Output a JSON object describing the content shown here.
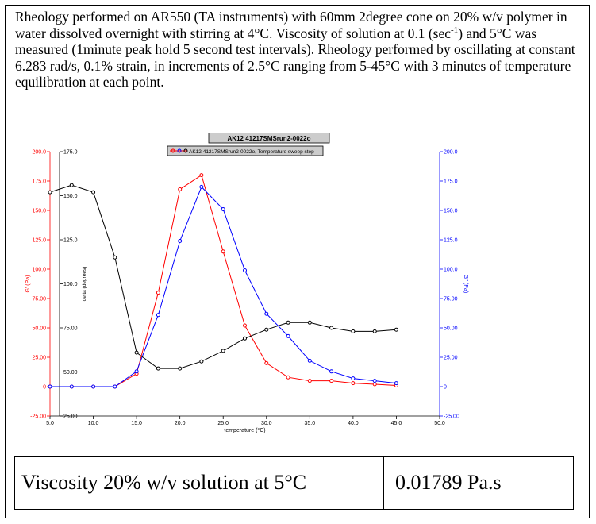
{
  "description": {
    "before_sup": "Rheology performed on AR550 (TA instruments) with 60mm 2degree cone on 20% w/v polymer in water dissolved overnight with stirring at 4°C. Viscosity of solution at 0.1 (sec",
    "sup": "-1",
    "after_sup": ") and 5°C was measured (1minute peak hold 5 second test intervals). Rheology performed by oscillating at constant 6.283 rad/s, 0.1% strain, in increments of 2.5°C ranging from 5-45°C with 3 minutes of temperature equilibration at each point."
  },
  "table": {
    "label": "Viscosity 20% w/v solution at 5°C",
    "value": "0.01789  Pa.s"
  },
  "chart_data": {
    "type": "line",
    "title": "AK12 41217SMSrun2-0022o",
    "legend": {
      "text": "AK12 41217SMSrun2-0022o, Temperature sweep step",
      "position": "top-center"
    },
    "xlabel": "temperature (°C)",
    "xlim": [
      5.0,
      50.0
    ],
    "x_ticks": [
      "5.0",
      "10.0",
      "15.0",
      "20.0",
      "25.0",
      "30.0",
      "35.0",
      "40.0",
      "45.0",
      "50.0"
    ],
    "left_axis": {
      "label": "G' (Pa)",
      "color": "#ff0000",
      "lim": [
        -25.0,
        200.0
      ],
      "ticks": [
        "-25.00",
        "0",
        "25.00",
        "50.00",
        "75.00",
        "100.0",
        "125.0",
        "150.0",
        "175.0",
        "200.0"
      ]
    },
    "delta_axis": {
      "label": "delta (degrees)",
      "color": "#000000",
      "lim": [
        25.0,
        175.0
      ],
      "ticks": [
        "25.00",
        "50.00",
        "75.00",
        "100.0",
        "125.0",
        "150.0",
        "175.0"
      ]
    },
    "right_axis": {
      "label": "G'' (Pa)",
      "color": "#0000ff",
      "lim": [
        -25.0,
        200.0
      ],
      "ticks": [
        "-25.00",
        "0",
        "25.00",
        "50.00",
        "75.00",
        "100.0",
        "125.0",
        "150.0",
        "175.0",
        "200.0"
      ]
    },
    "x": [
      5.0,
      7.5,
      10.0,
      12.5,
      15.0,
      17.5,
      20.0,
      22.5,
      25.0,
      27.5,
      30.0,
      32.5,
      35.0,
      37.5,
      40.0,
      42.5,
      45.0
    ],
    "series": [
      {
        "axis": "left",
        "color": "#ff0000",
        "values": [
          0,
          0,
          0,
          0,
          11,
          80,
          168,
          180,
          115,
          52,
          20,
          8,
          5,
          5,
          3,
          2,
          1
        ]
      },
      {
        "axis": "right",
        "color": "#0000ff",
        "values": [
          0,
          0,
          0,
          0,
          13,
          61,
          124,
          170,
          151,
          99,
          62,
          43,
          22,
          13,
          7,
          5,
          3
        ]
      },
      {
        "axis": "delta",
        "color": "#000000",
        "values": [
          152,
          156,
          152,
          115,
          61,
          52,
          52,
          56,
          62,
          69,
          74,
          78,
          78,
          75,
          73,
          73,
          74
        ]
      }
    ]
  }
}
